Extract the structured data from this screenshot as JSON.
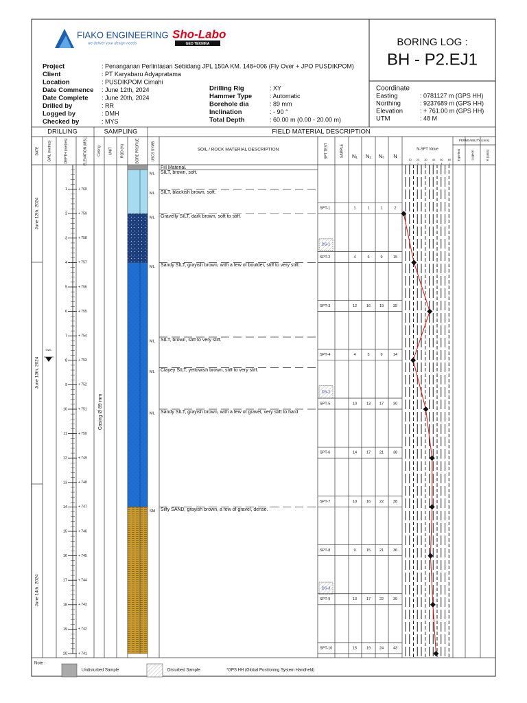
{
  "logo": {
    "company": "FIAKO ENGINEERING",
    "tagline": "we deliver your design needs",
    "partner": "Sho-Labo",
    "partner_sub": "GEO TEKNIKA"
  },
  "title": {
    "label": "BORING LOG :",
    "id": "BH - P2.EJ1"
  },
  "project_info": [
    {
      "label": "Project",
      "value": ": Penanganan Perlintasan Sebidang JPL 150A KM. 148+006 (Fly Over + JPO PUSDIKPOM)"
    },
    {
      "label": "Client",
      "value": ": PT Karyabaru Adyapratama"
    },
    {
      "label": "Location",
      "value": ": PUSDIKPOM Cimahi"
    },
    {
      "label": "Date Commence",
      "value": ": June 12th, 2024"
    },
    {
      "label": "Date Complete",
      "value": ": June 20th, 2024"
    },
    {
      "label": "Drilled by",
      "value": ": RR"
    },
    {
      "label": "Logged by",
      "value": ": DMH"
    },
    {
      "label": "Checked by",
      "value": ": MYS"
    }
  ],
  "drilling_info": [
    {
      "label": "Drilling Rig",
      "value": ": XY"
    },
    {
      "label": "Hammer Type",
      "value": ": Automatic"
    },
    {
      "label": "Borehole dia",
      "value": ": 89 mm"
    },
    {
      "label": "Inclination",
      "value": ": - 90 °"
    },
    {
      "label": "Total Depth",
      "value": ": 60.00 m (0.00 - 20.00 m)"
    }
  ],
  "coordinate": {
    "title": "Coordinate",
    "rows": [
      {
        "label": "Easting",
        "value": ": 0781127 m (GPS HH)"
      },
      {
        "label": "Northing",
        "value": ": 9237689 m (GPS HH)"
      },
      {
        "label": "Elevation",
        "value": ": + 761.00 m (GPS HH)"
      },
      {
        "label": "UTM",
        "value": ": 48 M"
      }
    ]
  },
  "sections": [
    "DRILLING",
    "SAMPLING",
    "FIELD MATERIAL DESCRIPTION"
  ],
  "columns": [
    "DATE",
    "GWL (metres)",
    "DEPTH (metres)",
    "ELEVATION (MSL)",
    "Casing",
    "UNIT",
    "RQD (%)",
    "BORE PROFILE",
    "USCS SYMB.",
    "SOIL / ROCK MATERIAL DESCRIPTION",
    "SPT TEST",
    "SAMPLE",
    "N₁",
    "N₂",
    "N₃",
    "N"
  ],
  "dates": [
    "June 12th, 2024",
    "June 13th, 2024",
    "June 14th, 2024"
  ],
  "gwl": "GWL",
  "casing": "Casing Ø 89 mm",
  "depth_ticks": [
    1,
    2,
    3,
    4,
    5,
    6,
    7,
    8,
    9,
    10,
    11,
    12,
    13,
    14,
    15,
    16,
    17,
    18,
    19,
    20
  ],
  "elevations": [
    "+ 760",
    "+ 759",
    "+ 758",
    "+ 757",
    "+ 756",
    "+ 755",
    "+ 754",
    "+ 753",
    "+ 752",
    "+ 751",
    "+ 750",
    "+ 749",
    "+ 748",
    "+ 747",
    "+ 746",
    "+ 745",
    "+ 744",
    "+ 743",
    "+ 742",
    "+ 741"
  ],
  "layers": [
    {
      "description": "Fill Material."
    },
    {
      "uscs": "ML",
      "description": "SILT, brown, soft."
    },
    {
      "uscs": "ML",
      "description": "SILT, blackish brown, soft."
    },
    {
      "uscs": "ML",
      "description": "Gravelly SILT, dark brown, soft to stiff."
    },
    {
      "uscs": "ML",
      "description": "Sandy SILT, grayish brown, with a few of boulder, stiff to very stiff."
    },
    {
      "uscs": "ML",
      "description": "SILT, brown, stiff to very stiff."
    },
    {
      "uscs": "ML",
      "description": "Clayey SILT, yellowish brown, stiff to very stiff."
    },
    {
      "uscs": "ML",
      "description": "Sandy SILT, grayish brown, with a few of gravel, very stiff to hard"
    },
    {
      "uscs": "SM",
      "description": "Silty SAND, grayish brown, a few of gravel, dense."
    }
  ],
  "spt": [
    {
      "test": "SPT-1",
      "n1": 1,
      "n2": 1,
      "n3": 1,
      "n": 2
    },
    {
      "test": "SPT-2",
      "n1": 4,
      "n2": 6,
      "n3": 9,
      "n": 15
    },
    {
      "test": "SPT-3",
      "n1": 12,
      "n2": 16,
      "n3": 19,
      "n": 35
    },
    {
      "test": "SPT-4",
      "n1": 4,
      "n2": 5,
      "n3": 9,
      "n": 14
    },
    {
      "test": "SPT-5",
      "n1": 10,
      "n2": 13,
      "n3": 17,
      "n": 30
    },
    {
      "test": "SPT-6",
      "n1": 14,
      "n2": 17,
      "n3": 21,
      "n": 38
    },
    {
      "test": "SPT-7",
      "n1": 10,
      "n2": 16,
      "n3": 22,
      "n": 38
    },
    {
      "test": "SPT-8",
      "n1": 9,
      "n2": 15,
      "n3": 21,
      "n": 36
    },
    {
      "test": "SPT-9",
      "n1": 13,
      "n2": 17,
      "n3": 22,
      "n": 39
    },
    {
      "test": "SPT-10",
      "n1": 15,
      "n2": 19,
      "n3": 24,
      "n": 43
    }
  ],
  "samples": [
    "DS-1",
    "DS-2",
    "DS-3"
  ],
  "nspt_axis": {
    "title": "N-SPT Value",
    "ticks": [
      0,
      10,
      20,
      30,
      40,
      50,
      60
    ]
  },
  "permeability": {
    "title": "PERMEABILITY (cm/s)",
    "columns": [
      "TypeTest",
      "Lugeon",
      "K (cm/s)"
    ]
  },
  "footer": {
    "note": "Note :",
    "legend": [
      "Undisturbed Sample",
      "Disturbed Sample"
    ],
    "footnote": "*GPS HH (Global Positioning System Handheld)"
  }
}
